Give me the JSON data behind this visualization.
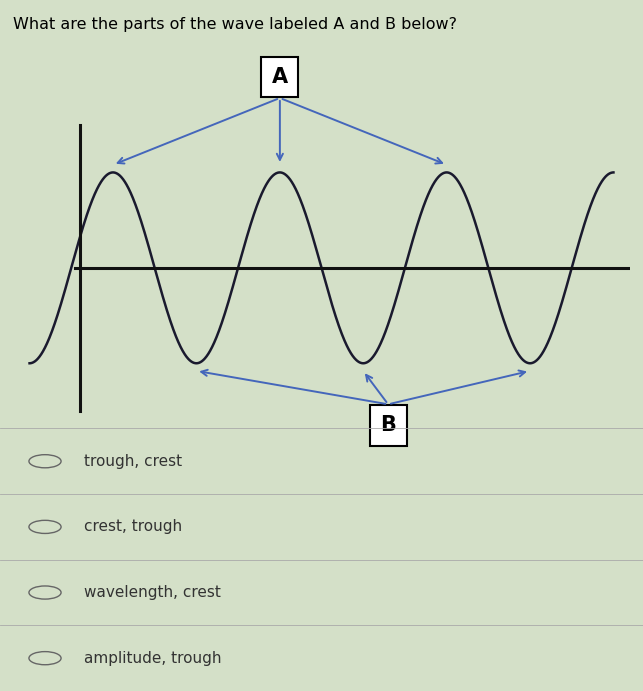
{
  "title": "What are the parts of the wave labeled A and B below?",
  "title_fontsize": 11.5,
  "background_color": "#d4e0c8",
  "wave_color": "#1a1a2e",
  "wave_linewidth": 1.8,
  "axis_color": "#111111",
  "arrow_color": "#4466bb",
  "label_A": "A",
  "label_B": "B",
  "choices": [
    "trough, crest",
    "crest, trough",
    "wavelength, crest",
    "amplitude, trough"
  ],
  "figure_width": 6.43,
  "figure_height": 6.91,
  "dpi": 100
}
